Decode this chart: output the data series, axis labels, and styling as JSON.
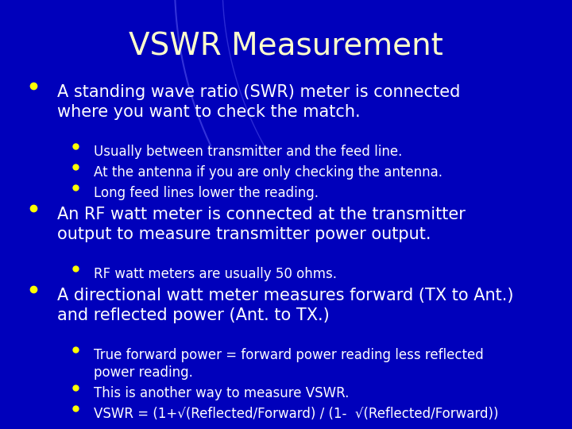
{
  "title": "VSWR Measurement",
  "title_color": "#FFFFCC",
  "title_fontsize": 28,
  "bg_color": "#0000BB",
  "text_color": "#FFFFFF",
  "bullet_color": "#FFFF00",
  "content": [
    {
      "level": 1,
      "text": "A standing wave ratio (SWR) meter is connected\nwhere you want to check the match.",
      "fontsize": 15
    },
    {
      "level": 2,
      "text": "Usually between transmitter and the feed line.",
      "fontsize": 12
    },
    {
      "level": 2,
      "text": "At the antenna if you are only checking the antenna.",
      "fontsize": 12
    },
    {
      "level": 2,
      "text": "Long feed lines lower the reading.",
      "fontsize": 12
    },
    {
      "level": 1,
      "text": "An RF watt meter is connected at the transmitter\noutput to measure transmitter power output.",
      "fontsize": 15
    },
    {
      "level": 2,
      "text": "RF watt meters are usually 50 ohms.",
      "fontsize": 12
    },
    {
      "level": 1,
      "text": "A directional watt meter measures forward (TX to Ant.)\nand reflected power (Ant. to TX.)",
      "fontsize": 15
    },
    {
      "level": 2,
      "text": "True forward power = forward power reading less reflected\npower reading.",
      "fontsize": 12
    },
    {
      "level": 2,
      "text": "This is another way to measure VSWR.",
      "fontsize": 12
    },
    {
      "level": 2,
      "text": "VSWR = (1+√(Reflected/Forward) / (1-  √(Reflected/Forward))",
      "fontsize": 12
    }
  ],
  "arc_color": "#4444FF",
  "fig_width": 7.2,
  "fig_height": 5.4,
  "dpi": 100
}
